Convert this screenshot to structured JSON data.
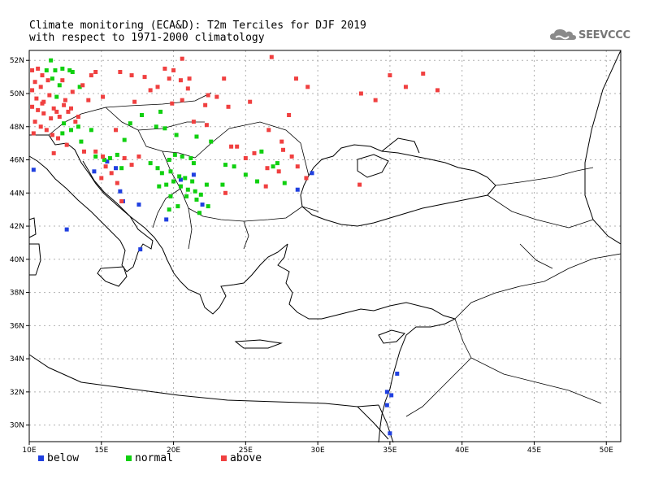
{
  "title": {
    "line1": "Climate monitoring (ECA&D): T2m Terciles for DJF 2019",
    "line2": "with respect to 1971-2000 climatology"
  },
  "logo": {
    "text": "SEEVCCC",
    "icon": "cloud-icon"
  },
  "colors": {
    "below": "#2040e0",
    "normal": "#10d010",
    "above": "#f04040",
    "land_outline": "#000000",
    "grid": "#b0b0b0"
  },
  "map": {
    "lon_range": [
      10,
      51
    ],
    "lat_range": [
      29,
      52.6
    ],
    "lon_ticks": [
      {
        "value": 10,
        "label": "10E"
      },
      {
        "value": 15,
        "label": "15E"
      },
      {
        "value": 20,
        "label": "20E"
      },
      {
        "value": 25,
        "label": "25E"
      },
      {
        "value": 30,
        "label": "30E"
      },
      {
        "value": 35,
        "label": "35E"
      },
      {
        "value": 40,
        "label": "40E"
      },
      {
        "value": 45,
        "label": "45E"
      },
      {
        "value": 50,
        "label": "50E"
      }
    ],
    "lat_ticks": [
      {
        "value": 30,
        "label": "30N"
      },
      {
        "value": 32,
        "label": "32N"
      },
      {
        "value": 34,
        "label": "34N"
      },
      {
        "value": 36,
        "label": "36N"
      },
      {
        "value": 38,
        "label": "38N"
      },
      {
        "value": 40,
        "label": "40N"
      },
      {
        "value": 42,
        "label": "42N"
      },
      {
        "value": 44,
        "label": "44N"
      },
      {
        "value": 46,
        "label": "46N"
      },
      {
        "value": 48,
        "label": "48N"
      },
      {
        "value": 50,
        "label": "50N"
      },
      {
        "value": 52,
        "label": "52N"
      }
    ],
    "grid": true
  },
  "legend": [
    {
      "key": "below",
      "label": "below"
    },
    {
      "key": "normal",
      "label": "normal"
    },
    {
      "key": "above",
      "label": "above"
    }
  ],
  "stations": {
    "below": [
      [
        10.3,
        45.4
      ],
      [
        12.6,
        41.8
      ],
      [
        14.5,
        45.3
      ],
      [
        15.4,
        45.9
      ],
      [
        16.3,
        44.1
      ],
      [
        16.5,
        43.5
      ],
      [
        17.6,
        43.3
      ],
      [
        17.7,
        40.6
      ],
      [
        19.5,
        42.4
      ],
      [
        21.4,
        45.1
      ],
      [
        22.0,
        43.3
      ],
      [
        28.6,
        44.2
      ],
      [
        29.6,
        45.2
      ],
      [
        34.8,
        32.0
      ],
      [
        35.1,
        31.8
      ],
      [
        35.5,
        33.1
      ],
      [
        34.8,
        31.2
      ],
      [
        35.0,
        29.5
      ],
      [
        20.5,
        44.8
      ],
      [
        16.0,
        45.5
      ]
    ],
    "normal": [
      [
        11.2,
        51.4
      ],
      [
        11.8,
        51.4
      ],
      [
        12.3,
        51.5
      ],
      [
        12.8,
        51.4
      ],
      [
        13.0,
        51.3
      ],
      [
        11.6,
        50.9
      ],
      [
        12.1,
        50.5
      ],
      [
        13.5,
        50.4
      ],
      [
        11.9,
        49.8
      ],
      [
        12.4,
        48.2
      ],
      [
        13.4,
        48.0
      ],
      [
        14.3,
        47.8
      ],
      [
        12.3,
        47.6
      ],
      [
        14.6,
        46.2
      ],
      [
        15.2,
        46.0
      ],
      [
        15.6,
        46.1
      ],
      [
        16.1,
        46.3
      ],
      [
        16.6,
        47.2
      ],
      [
        17.0,
        48.2
      ],
      [
        17.8,
        48.7
      ],
      [
        18.8,
        48.0
      ],
      [
        19.1,
        48.9
      ],
      [
        19.4,
        47.9
      ],
      [
        20.2,
        47.5
      ],
      [
        21.6,
        47.4
      ],
      [
        16.4,
        45.5
      ],
      [
        18.4,
        45.8
      ],
      [
        18.9,
        45.5
      ],
      [
        19.7,
        46.0
      ],
      [
        20.1,
        46.3
      ],
      [
        20.6,
        46.2
      ],
      [
        21.2,
        46.1
      ],
      [
        21.4,
        45.8
      ],
      [
        19.2,
        45.2
      ],
      [
        19.8,
        45.3
      ],
      [
        20.4,
        45.0
      ],
      [
        20.8,
        44.9
      ],
      [
        21.3,
        44.7
      ],
      [
        19.0,
        44.4
      ],
      [
        19.5,
        44.5
      ],
      [
        20.0,
        44.7
      ],
      [
        20.5,
        44.4
      ],
      [
        21.0,
        44.2
      ],
      [
        21.5,
        44.1
      ],
      [
        22.3,
        44.5
      ],
      [
        20.9,
        43.8
      ],
      [
        21.6,
        43.6
      ],
      [
        19.8,
        43.8
      ],
      [
        20.3,
        43.2
      ],
      [
        21.9,
        43.9
      ],
      [
        22.4,
        43.2
      ],
      [
        19.7,
        43.0
      ],
      [
        21.8,
        42.8
      ],
      [
        23.6,
        45.7
      ],
      [
        24.2,
        45.6
      ],
      [
        25.0,
        45.1
      ],
      [
        23.4,
        44.5
      ],
      [
        25.8,
        44.7
      ],
      [
        27.7,
        44.6
      ],
      [
        26.9,
        45.6
      ],
      [
        27.2,
        45.8
      ],
      [
        26.1,
        46.5
      ],
      [
        22.6,
        47.1
      ],
      [
        11.5,
        52.0
      ],
      [
        13.6,
        47.1
      ],
      [
        12.9,
        47.8
      ]
    ],
    "above": [
      [
        10.2,
        51.4
      ],
      [
        10.6,
        51.5
      ],
      [
        10.9,
        51.1
      ],
      [
        10.4,
        50.7
      ],
      [
        10.8,
        50.4
      ],
      [
        10.2,
        50.2
      ],
      [
        10.5,
        49.7
      ],
      [
        11.0,
        49.5
      ],
      [
        11.4,
        49.9
      ],
      [
        10.2,
        49.2
      ],
      [
        10.6,
        49.0
      ],
      [
        11.0,
        48.8
      ],
      [
        11.5,
        48.5
      ],
      [
        11.9,
        48.9
      ],
      [
        12.4,
        49.3
      ],
      [
        12.9,
        49.1
      ],
      [
        13.4,
        48.6
      ],
      [
        10.4,
        48.3
      ],
      [
        10.8,
        48.0
      ],
      [
        11.2,
        47.8
      ],
      [
        11.6,
        47.5
      ],
      [
        12.0,
        47.3
      ],
      [
        12.5,
        49.6
      ],
      [
        13.0,
        50.1
      ],
      [
        13.7,
        50.5
      ],
      [
        14.3,
        51.1
      ],
      [
        10.3,
        47.6
      ],
      [
        11.3,
        50.8
      ],
      [
        12.1,
        48.6
      ],
      [
        12.7,
        48.9
      ],
      [
        13.2,
        48.3
      ],
      [
        10.9,
        49.4
      ],
      [
        11.7,
        49.1
      ],
      [
        14.6,
        51.3
      ],
      [
        15.1,
        49.8
      ],
      [
        16.3,
        51.3
      ],
      [
        17.1,
        51.1
      ],
      [
        18.0,
        51.0
      ],
      [
        19.4,
        51.5
      ],
      [
        20.0,
        51.4
      ],
      [
        21.1,
        50.9
      ],
      [
        22.4,
        49.9
      ],
      [
        21.0,
        50.3
      ],
      [
        23.5,
        50.9
      ],
      [
        20.6,
        49.6
      ],
      [
        22.2,
        49.3
      ],
      [
        23.8,
        49.2
      ],
      [
        21.4,
        48.3
      ],
      [
        17.3,
        49.5
      ],
      [
        19.9,
        49.4
      ],
      [
        18.4,
        50.2
      ],
      [
        20.5,
        50.8
      ],
      [
        13.8,
        46.5
      ],
      [
        14.6,
        46.5
      ],
      [
        15.1,
        46.2
      ],
      [
        15.3,
        45.6
      ],
      [
        15.0,
        44.9
      ],
      [
        15.7,
        45.2
      ],
      [
        16.6,
        46.1
      ],
      [
        17.1,
        45.7
      ],
      [
        17.6,
        46.2
      ],
      [
        16.1,
        44.6
      ],
      [
        16.4,
        43.5
      ],
      [
        22.3,
        48.1
      ],
      [
        24.4,
        46.8
      ],
      [
        25.6,
        46.4
      ],
      [
        26.5,
        45.5
      ],
      [
        27.5,
        47.1
      ],
      [
        27.6,
        46.6
      ],
      [
        26.6,
        47.8
      ],
      [
        28.2,
        46.2
      ],
      [
        28.6,
        45.6
      ],
      [
        29.2,
        44.9
      ],
      [
        32.9,
        44.5
      ],
      [
        26.4,
        44.4
      ],
      [
        25.0,
        46.1
      ],
      [
        24.0,
        46.8
      ],
      [
        23.6,
        44.0
      ],
      [
        27.3,
        45.3
      ],
      [
        28.0,
        48.7
      ],
      [
        26.8,
        52.2
      ],
      [
        33.0,
        50.0
      ],
      [
        36.1,
        50.4
      ],
      [
        37.3,
        51.2
      ],
      [
        38.3,
        50.2
      ],
      [
        34.0,
        49.6
      ],
      [
        28.5,
        50.9
      ],
      [
        29.3,
        50.4
      ],
      [
        20.6,
        52.1
      ],
      [
        12.3,
        50.8
      ],
      [
        14.1,
        49.6
      ],
      [
        23.0,
        49.8
      ],
      [
        18.9,
        50.4
      ],
      [
        25.3,
        49.5
      ],
      [
        19.7,
        50.9
      ],
      [
        35.0,
        51.1
      ],
      [
        16.0,
        47.8
      ],
      [
        12.6,
        46.9
      ],
      [
        11.7,
        46.4
      ]
    ]
  }
}
